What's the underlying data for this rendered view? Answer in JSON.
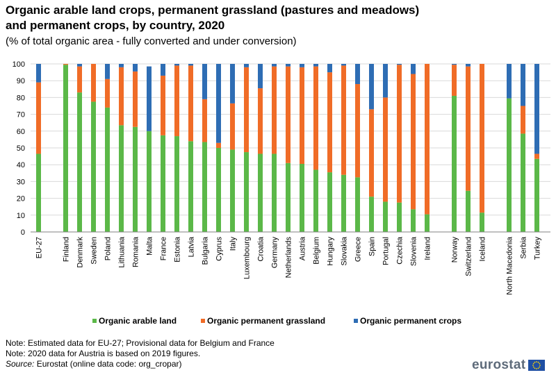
{
  "header": {
    "title": "Organic arable land crops, permanent grassland (pastures and meadows) and permanent crops, by country, 2020",
    "subtitle": "(% of total organic area - fully converted and under conversion)"
  },
  "footer": {
    "note1": "Note: Estimated data for EU-27; Provisional data for Belgium and France",
    "note2": "Note: 2020 data for Austria is based on 2019 figures.",
    "source_label": "Source:",
    "source_text": " Eurostat (online data code: org_cropar)",
    "logo_text": "eurostat",
    "logo_icon": "eu-flag-icon"
  },
  "chart_data": {
    "type": "bar",
    "stacked": true,
    "categories": [
      "EU-27",
      "Finland",
      "Denmark",
      "Sweden",
      "Poland",
      "Lithuania",
      "Romania",
      "Malta",
      "France",
      "Estonia",
      "Latvia",
      "Bulgaria",
      "Cyprus",
      "Italy",
      "Luxembourg",
      "Croatia",
      "Germany",
      "Netherlands",
      "Austria",
      "Belgium",
      "Hungary",
      "Slovakia",
      "Greece",
      "Spain",
      "Portugal",
      "Czechia",
      "Slovenia",
      "Ireland",
      "Norway",
      "Switzerland",
      "Iceland",
      "North Macedonia",
      "Serbia",
      "Turkey"
    ],
    "groups": [
      [
        "EU-27"
      ],
      [
        "Finland",
        "Denmark",
        "Sweden",
        "Poland",
        "Lithuania",
        "Romania",
        "Malta",
        "France",
        "Estonia",
        "Latvia",
        "Bulgaria",
        "Cyprus",
        "Italy",
        "Luxembourg",
        "Croatia",
        "Germany",
        "Netherlands",
        "Austria",
        "Belgium",
        "Hungary",
        "Slovakia",
        "Greece",
        "Spain",
        "Portugal",
        "Czechia",
        "Slovenia",
        "Ireland"
      ],
      [
        "Norway",
        "Switzerland",
        "Iceland"
      ],
      [
        "North Macedonia",
        "Serbia",
        "Turkey"
      ]
    ],
    "series": [
      {
        "name": "Organic arable land",
        "color": "#5bb848",
        "values": [
          46.5,
          99.5,
          83,
          77.5,
          74,
          63.5,
          62.5,
          60,
          57.5,
          57,
          54,
          53.5,
          50,
          49,
          47.5,
          46.5,
          46.5,
          41,
          40.5,
          37,
          35.5,
          34,
          32.5,
          21,
          18,
          17.5,
          13.5,
          10.5,
          81,
          24.5,
          11.5,
          79.5,
          58.5,
          43.5
        ]
      },
      {
        "name": "Organic permanent grassland",
        "color": "#f06c27",
        "values": [
          42.5,
          0.5,
          15.5,
          22.5,
          17,
          34.5,
          33,
          0,
          35.5,
          42,
          45,
          25.5,
          3,
          27.5,
          50.5,
          39,
          52,
          57.5,
          57.5,
          61.5,
          59.5,
          65,
          55.5,
          52,
          62,
          82,
          80.5,
          89.5,
          18.5,
          74,
          88.5,
          0,
          16.5,
          3
        ]
      },
      {
        "name": "Organic permanent crops",
        "color": "#2e6db4",
        "values": [
          11,
          0,
          1.5,
          0,
          9,
          2,
          4.5,
          38.5,
          7,
          1,
          1,
          21,
          47,
          23.5,
          2,
          14.5,
          1.5,
          1.5,
          2,
          1.5,
          5,
          1,
          12,
          27,
          20,
          0.5,
          6,
          0,
          0.5,
          1.5,
          0,
          20.5,
          25,
          53.5
        ]
      }
    ],
    "ylim": [
      0,
      100
    ],
    "yticks": [
      0,
      10,
      20,
      30,
      40,
      50,
      60,
      70,
      80,
      90,
      100
    ],
    "grid": true,
    "legend_position": "bottom"
  }
}
